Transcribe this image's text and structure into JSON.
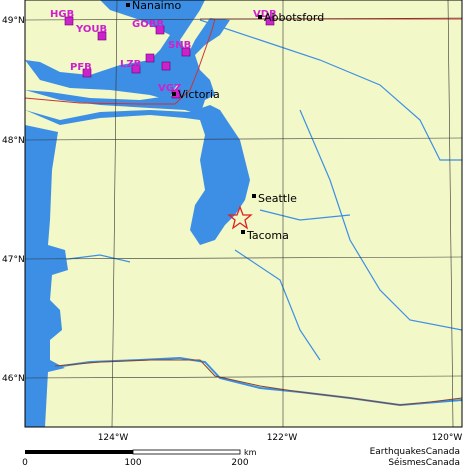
{
  "map": {
    "cities": [
      "Nanaimo",
      "Abbotsford",
      "Seattle",
      "Tacoma",
      "Victoria"
    ],
    "stations": [
      "HGB",
      "YOUB",
      "GOBB",
      "VDB",
      "SNB",
      "PFB",
      "LZB",
      "VGZ"
    ],
    "latitude_labels": [
      "49°N",
      "48°N",
      "47°N",
      "46°N"
    ],
    "longitude_labels": [
      "124°W",
      "122°W",
      "120°W"
    ],
    "scale_bar": {
      "labels": [
        "0",
        "100",
        "200"
      ],
      "unit": "km"
    },
    "credits": [
      "EarthquakesCanada",
      "SéismesCanada"
    ]
  }
}
